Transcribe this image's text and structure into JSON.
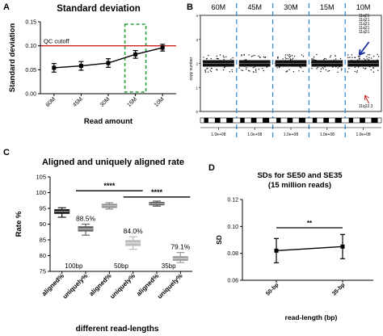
{
  "chart_data": [
    {
      "panel": "A",
      "type": "line",
      "title": "Standard deviation",
      "xlabel": "Read amount",
      "ylabel": "Standard deviation",
      "categories": [
        "60M",
        "45M",
        "30M",
        "15M",
        "10M"
      ],
      "values": [
        0.054,
        0.058,
        0.064,
        0.082,
        0.096
      ],
      "errors": [
        0.009,
        0.009,
        0.009,
        0.008,
        0.007
      ],
      "ylim": [
        0.0,
        0.15
      ],
      "yticks": [
        "0.00",
        "0.05",
        "0.10",
        "0.15"
      ],
      "reference_line": {
        "label": "QC cutoff",
        "value": 0.1,
        "color": "#cc2222"
      },
      "highlight_category": "15M",
      "highlight_color": "#27a337"
    },
    {
      "panel": "B",
      "type": "scatter",
      "segments": [
        "60M",
        "45M",
        "30M",
        "15M",
        "10M"
      ],
      "ylabel": "copy number",
      "yticks": [
        "0",
        "1",
        "2",
        "3",
        "4"
      ],
      "ylim": [
        0,
        4
      ],
      "baseline": 2,
      "xtick_label": "1.0e+08",
      "gain_label": "11q21",
      "gain_label_count": 5,
      "gain_color": "#1a2fa0",
      "loss_label": "11q22.3",
      "loss_color": "#d22222",
      "divider_color": "#3a8fd6"
    },
    {
      "panel": "C",
      "type": "box",
      "title": "Aligned and uniquely aligned rate",
      "xlabel": "different read-lengths",
      "ylabel": "Rate %",
      "ylim": [
        75,
        105
      ],
      "yticks": [
        "75",
        "80",
        "85",
        "90",
        "95",
        "100",
        "105"
      ],
      "categories": [
        "aligned%",
        "uniquely%",
        "aligned%",
        "uniquely%",
        "aligned%",
        "uniquely%"
      ],
      "groups": [
        "100bp",
        "50bp",
        "35bp"
      ],
      "boxes": [
        {
          "median": 94.0,
          "q1": 93.4,
          "q3": 94.6,
          "min": 92.2,
          "max": 95.2,
          "color": "#111111",
          "label": ""
        },
        {
          "median": 88.5,
          "q1": 87.8,
          "q3": 89.2,
          "min": 86.5,
          "max": 90.0,
          "color": "#666666",
          "label": "88.5%"
        },
        {
          "median": 95.8,
          "q1": 95.3,
          "q3": 96.3,
          "min": 94.8,
          "max": 96.8,
          "color": "#888888",
          "label": ""
        },
        {
          "median": 84.0,
          "q1": 83.2,
          "q3": 84.8,
          "min": 82.0,
          "max": 86.0,
          "color": "#bbbbbb",
          "label": "84.0%"
        },
        {
          "median": 96.5,
          "q1": 96.1,
          "q3": 96.9,
          "min": 95.7,
          "max": 97.3,
          "color": "#555555",
          "label": ""
        },
        {
          "median": 79.1,
          "q1": 78.5,
          "q3": 79.7,
          "min": 77.8,
          "max": 81.0,
          "color": "#999999",
          "label": "79.1%"
        }
      ],
      "significance": [
        {
          "label": "****",
          "from": 1,
          "to": 3,
          "y": 100.6
        },
        {
          "label": "****",
          "from": 3,
          "to": 5,
          "y": 98.6
        }
      ]
    },
    {
      "panel": "D",
      "type": "line",
      "title": "SDs for SE50 and SE35",
      "subtitle": "(15 million reads)",
      "xlabel": "read-length (bp)",
      "ylabel": "SD",
      "categories": [
        "50-bp",
        "35-bp"
      ],
      "values": [
        0.082,
        0.085
      ],
      "errors": [
        0.009,
        0.009
      ],
      "ylim": [
        0.06,
        0.12
      ],
      "yticks": [
        "0.06",
        "0.08",
        "0.10",
        "0.12"
      ],
      "significance": {
        "label": "**",
        "y": 0.099
      }
    }
  ]
}
